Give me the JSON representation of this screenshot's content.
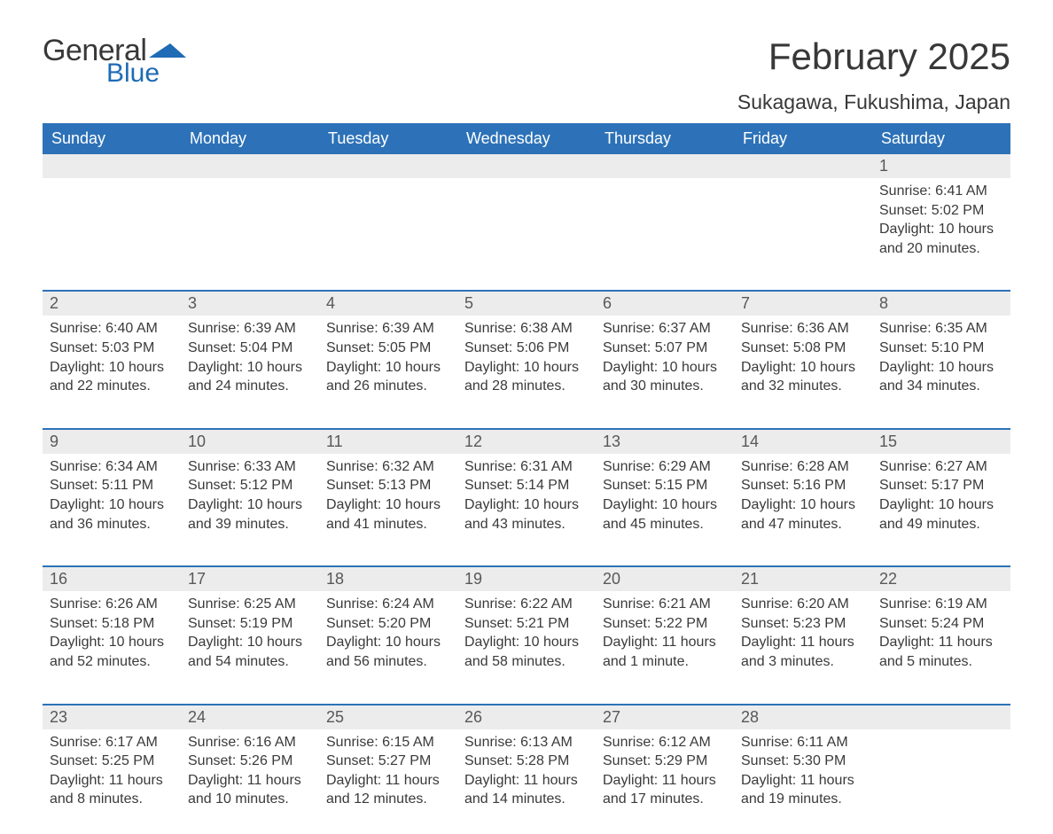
{
  "logo": {
    "word1": "General",
    "word2": "Blue"
  },
  "colors": {
    "header_bg": "#2d72b8",
    "header_text": "#ffffff",
    "daynum_bg": "#ececec",
    "daynum_border": "#2d72b8",
    "logo_blue": "#1f6bb5",
    "text": "#383838",
    "bg": "#ffffff"
  },
  "title": "February 2025",
  "location": "Sukagawa, Fukushima, Japan",
  "weekdays": [
    "Sunday",
    "Monday",
    "Tuesday",
    "Wednesday",
    "Thursday",
    "Friday",
    "Saturday"
  ],
  "weeks": [
    {
      "nums": [
        "",
        "",
        "",
        "",
        "",
        "",
        "1"
      ],
      "cells": [
        {
          "sunrise": "",
          "sunset": "",
          "daylight": ""
        },
        {
          "sunrise": "",
          "sunset": "",
          "daylight": ""
        },
        {
          "sunrise": "",
          "sunset": "",
          "daylight": ""
        },
        {
          "sunrise": "",
          "sunset": "",
          "daylight": ""
        },
        {
          "sunrise": "",
          "sunset": "",
          "daylight": ""
        },
        {
          "sunrise": "",
          "sunset": "",
          "daylight": ""
        },
        {
          "sunrise": "Sunrise: 6:41 AM",
          "sunset": "Sunset: 5:02 PM",
          "daylight": "Daylight: 10 hours and 20 minutes."
        }
      ]
    },
    {
      "nums": [
        "2",
        "3",
        "4",
        "5",
        "6",
        "7",
        "8"
      ],
      "cells": [
        {
          "sunrise": "Sunrise: 6:40 AM",
          "sunset": "Sunset: 5:03 PM",
          "daylight": "Daylight: 10 hours and 22 minutes."
        },
        {
          "sunrise": "Sunrise: 6:39 AM",
          "sunset": "Sunset: 5:04 PM",
          "daylight": "Daylight: 10 hours and 24 minutes."
        },
        {
          "sunrise": "Sunrise: 6:39 AM",
          "sunset": "Sunset: 5:05 PM",
          "daylight": "Daylight: 10 hours and 26 minutes."
        },
        {
          "sunrise": "Sunrise: 6:38 AM",
          "sunset": "Sunset: 5:06 PM",
          "daylight": "Daylight: 10 hours and 28 minutes."
        },
        {
          "sunrise": "Sunrise: 6:37 AM",
          "sunset": "Sunset: 5:07 PM",
          "daylight": "Daylight: 10 hours and 30 minutes."
        },
        {
          "sunrise": "Sunrise: 6:36 AM",
          "sunset": "Sunset: 5:08 PM",
          "daylight": "Daylight: 10 hours and 32 minutes."
        },
        {
          "sunrise": "Sunrise: 6:35 AM",
          "sunset": "Sunset: 5:10 PM",
          "daylight": "Daylight: 10 hours and 34 minutes."
        }
      ]
    },
    {
      "nums": [
        "9",
        "10",
        "11",
        "12",
        "13",
        "14",
        "15"
      ],
      "cells": [
        {
          "sunrise": "Sunrise: 6:34 AM",
          "sunset": "Sunset: 5:11 PM",
          "daylight": "Daylight: 10 hours and 36 minutes."
        },
        {
          "sunrise": "Sunrise: 6:33 AM",
          "sunset": "Sunset: 5:12 PM",
          "daylight": "Daylight: 10 hours and 39 minutes."
        },
        {
          "sunrise": "Sunrise: 6:32 AM",
          "sunset": "Sunset: 5:13 PM",
          "daylight": "Daylight: 10 hours and 41 minutes."
        },
        {
          "sunrise": "Sunrise: 6:31 AM",
          "sunset": "Sunset: 5:14 PM",
          "daylight": "Daylight: 10 hours and 43 minutes."
        },
        {
          "sunrise": "Sunrise: 6:29 AM",
          "sunset": "Sunset: 5:15 PM",
          "daylight": "Daylight: 10 hours and 45 minutes."
        },
        {
          "sunrise": "Sunrise: 6:28 AM",
          "sunset": "Sunset: 5:16 PM",
          "daylight": "Daylight: 10 hours and 47 minutes."
        },
        {
          "sunrise": "Sunrise: 6:27 AM",
          "sunset": "Sunset: 5:17 PM",
          "daylight": "Daylight: 10 hours and 49 minutes."
        }
      ]
    },
    {
      "nums": [
        "16",
        "17",
        "18",
        "19",
        "20",
        "21",
        "22"
      ],
      "cells": [
        {
          "sunrise": "Sunrise: 6:26 AM",
          "sunset": "Sunset: 5:18 PM",
          "daylight": "Daylight: 10 hours and 52 minutes."
        },
        {
          "sunrise": "Sunrise: 6:25 AM",
          "sunset": "Sunset: 5:19 PM",
          "daylight": "Daylight: 10 hours and 54 minutes."
        },
        {
          "sunrise": "Sunrise: 6:24 AM",
          "sunset": "Sunset: 5:20 PM",
          "daylight": "Daylight: 10 hours and 56 minutes."
        },
        {
          "sunrise": "Sunrise: 6:22 AM",
          "sunset": "Sunset: 5:21 PM",
          "daylight": "Daylight: 10 hours and 58 minutes."
        },
        {
          "sunrise": "Sunrise: 6:21 AM",
          "sunset": "Sunset: 5:22 PM",
          "daylight": "Daylight: 11 hours and 1 minute."
        },
        {
          "sunrise": "Sunrise: 6:20 AM",
          "sunset": "Sunset: 5:23 PM",
          "daylight": "Daylight: 11 hours and 3 minutes."
        },
        {
          "sunrise": "Sunrise: 6:19 AM",
          "sunset": "Sunset: 5:24 PM",
          "daylight": "Daylight: 11 hours and 5 minutes."
        }
      ]
    },
    {
      "nums": [
        "23",
        "24",
        "25",
        "26",
        "27",
        "28",
        ""
      ],
      "cells": [
        {
          "sunrise": "Sunrise: 6:17 AM",
          "sunset": "Sunset: 5:25 PM",
          "daylight": "Daylight: 11 hours and 8 minutes."
        },
        {
          "sunrise": "Sunrise: 6:16 AM",
          "sunset": "Sunset: 5:26 PM",
          "daylight": "Daylight: 11 hours and 10 minutes."
        },
        {
          "sunrise": "Sunrise: 6:15 AM",
          "sunset": "Sunset: 5:27 PM",
          "daylight": "Daylight: 11 hours and 12 minutes."
        },
        {
          "sunrise": "Sunrise: 6:13 AM",
          "sunset": "Sunset: 5:28 PM",
          "daylight": "Daylight: 11 hours and 14 minutes."
        },
        {
          "sunrise": "Sunrise: 6:12 AM",
          "sunset": "Sunset: 5:29 PM",
          "daylight": "Daylight: 11 hours and 17 minutes."
        },
        {
          "sunrise": "Sunrise: 6:11 AM",
          "sunset": "Sunset: 5:30 PM",
          "daylight": "Daylight: 11 hours and 19 minutes."
        },
        {
          "sunrise": "",
          "sunset": "",
          "daylight": ""
        }
      ]
    }
  ]
}
